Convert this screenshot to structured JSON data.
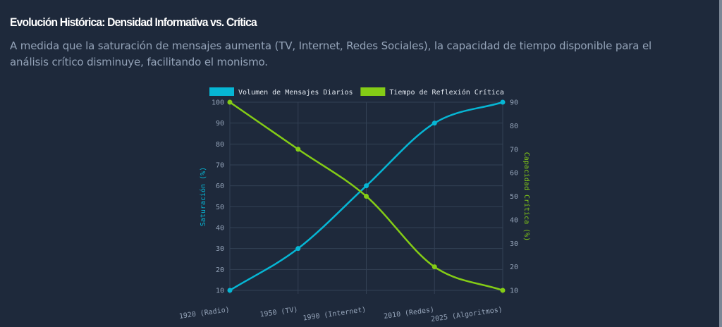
{
  "header": {
    "title": "Evolución Histórica: Densidad Informativa vs. Crítica",
    "description": "A medida que la saturación de mensajes aumenta (TV, Internet, Redes Sociales), la capacidad de tiempo disponible para el análisis crítico disminuye, facilitando el monismo."
  },
  "colors": {
    "background": "#1e293b",
    "series_blue": "#06b6d4",
    "series_green": "#84cc16",
    "grid": "#334155",
    "tick_text": "#94a3b8",
    "legend_text": "#e2e8f0"
  },
  "chart_data": {
    "type": "line",
    "title": "",
    "categories": [
      "1920 (Radio)",
      "1950 (TV)",
      "1990 (Internet)",
      "2010 (Redes)",
      "2025 (Algoritmos)"
    ],
    "series": [
      {
        "name": "Volumen de Mensajes Diarios",
        "axis": "left",
        "color": "#06b6d4",
        "values": [
          10,
          30,
          60,
          90,
          100
        ]
      },
      {
        "name": "Tiempo de Reflexión Crítica",
        "axis": "right",
        "color": "#84cc16",
        "values": [
          90,
          70,
          50,
          20,
          10
        ]
      }
    ],
    "xlabel": "",
    "ylabel": "Saturación (%)",
    "ylabel_right": "Capacidad Crítica (%)",
    "ylim": [
      10,
      100
    ],
    "ylim_right": [
      10,
      90
    ],
    "yticks": [
      10,
      20,
      30,
      40,
      50,
      60,
      70,
      80,
      90,
      100
    ],
    "yticks_right": [
      10,
      20,
      30,
      40,
      50,
      60,
      70,
      80,
      90
    ],
    "grid": true,
    "legend_position": "top",
    "curve": "smooth"
  }
}
